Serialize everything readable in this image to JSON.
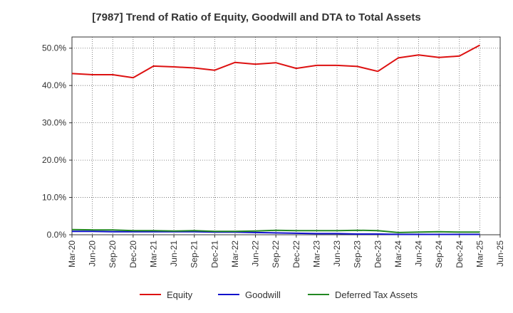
{
  "chart_data": {
    "type": "line",
    "title": "[7987]  Trend of Ratio of Equity, Goodwill and DTA to Total Assets",
    "xlabel": "",
    "ylabel": "",
    "ylim": [
      0,
      53
    ],
    "y_ticks": [
      0,
      10,
      20,
      30,
      40,
      50
    ],
    "y_tick_labels": [
      "0.0%",
      "10.0%",
      "20.0%",
      "30.0%",
      "40.0%",
      "50.0%"
    ],
    "x_tick_labels": [
      "Mar-20",
      "Jun-20",
      "Sep-20",
      "Dec-20",
      "Mar-21",
      "Jun-21",
      "Sep-21",
      "Dec-21",
      "Mar-22",
      "Jun-22",
      "Sep-22",
      "Dec-22",
      "Mar-23",
      "Jun-23",
      "Sep-23",
      "Dec-23",
      "Mar-24",
      "Jun-24",
      "Sep-24",
      "Dec-24",
      "Mar-25",
      "Jun-25"
    ],
    "categories": [
      "Mar-20",
      "Jun-20",
      "Sep-20",
      "Dec-20",
      "Mar-21",
      "Jun-21",
      "Sep-21",
      "Dec-21",
      "Mar-22",
      "Jun-22",
      "Sep-22",
      "Dec-22",
      "Mar-23",
      "Jun-23",
      "Sep-23",
      "Dec-23",
      "Mar-24",
      "Jun-24",
      "Sep-24",
      "Dec-24",
      "Mar-25"
    ],
    "grid": true,
    "legend_position": "bottom",
    "series": [
      {
        "name": "Equity",
        "color": "#dd1111",
        "values": [
          43.2,
          42.9,
          42.9,
          42.1,
          45.2,
          45.0,
          44.7,
          44.1,
          46.2,
          45.7,
          46.1,
          44.6,
          45.4,
          45.4,
          45.1,
          43.8,
          47.4,
          48.2,
          47.5,
          47.9,
          50.8
        ]
      },
      {
        "name": "Goodwill",
        "color": "#1111cc",
        "values": [
          0.9,
          0.9,
          0.8,
          0.8,
          0.8,
          0.8,
          0.8,
          0.7,
          0.7,
          0.6,
          0.5,
          0.4,
          0.3,
          0.3,
          0.2,
          0.2,
          0.1,
          0.1,
          0.1,
          0.1,
          0.1
        ]
      },
      {
        "name": "Deferred Tax Assets",
        "color": "#228822",
        "values": [
          1.4,
          1.3,
          1.3,
          1.1,
          1.1,
          1.0,
          1.1,
          0.9,
          0.9,
          1.0,
          1.2,
          1.1,
          1.1,
          1.1,
          1.2,
          1.1,
          0.6,
          0.7,
          0.8,
          0.7,
          0.7
        ]
      }
    ]
  }
}
